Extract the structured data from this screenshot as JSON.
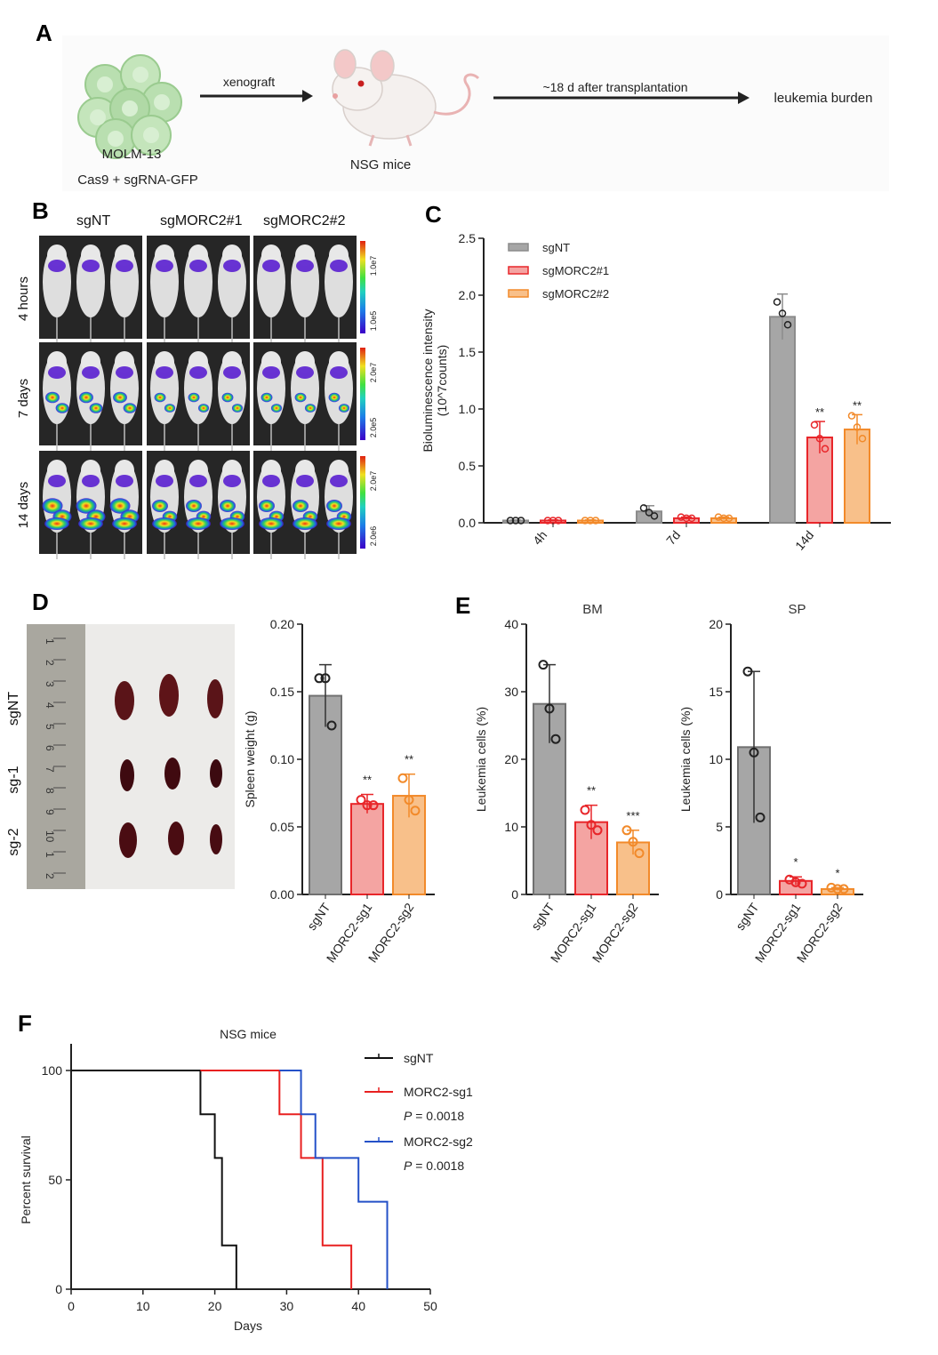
{
  "panels": {
    "a": "A",
    "b": "B",
    "c": "C",
    "d": "D",
    "e": "E",
    "f": "F"
  },
  "panel_a": {
    "cells_label": "MOLM-13",
    "cells_sublabel": "Cas9 + sgRNA-GFP",
    "step1": "xenograft",
    "mouse_label": "NSG mice",
    "step2": "~18 d after transplantation",
    "outcome": "leukemia burden"
  },
  "panel_b": {
    "columns": [
      "sgNT",
      "sgMORC2#1",
      "sgMORC2#2"
    ],
    "rows": [
      {
        "label": "4 hours",
        "scale_max": "1.0e7",
        "scale_min": "1.0e5"
      },
      {
        "label": "7 days",
        "scale_max": "2.0e7",
        "scale_min": "2.0e5"
      },
      {
        "label": "14 days",
        "scale_max": "2.0e7",
        "scale_min": "2.0e6"
      }
    ]
  },
  "panel_d_photo": {
    "row_labels": [
      "sgNT",
      "sg-1",
      "sg-2"
    ],
    "ruler_ticks": [
      "1",
      "2",
      "3",
      "4",
      "5",
      "6",
      "7",
      "8",
      "9",
      "10",
      "1",
      "2"
    ]
  },
  "chart_data": [
    {
      "id": "C",
      "type": "bar",
      "ylabel": "Bioluminescence intensity\n(10^7counts)",
      "ylim": [
        0,
        2.5
      ],
      "yticks": [
        "0.0",
        "0.5",
        "1.0",
        "1.5",
        "2.0",
        "2.5"
      ],
      "categories": [
        "4h",
        "7d",
        "14d"
      ],
      "legend": "top-left",
      "series": [
        {
          "name": "sgNT",
          "color": "#8c8c8c",
          "fill": "#a6a6a6",
          "values": [
            0.02,
            0.1,
            1.81
          ],
          "errors": [
            0.005,
            0.05,
            0.2
          ],
          "points": [
            [
              0.02,
              0.02,
              0.02
            ],
            [
              0.13,
              0.09,
              0.06
            ],
            [
              1.94,
              1.84,
              1.74
            ]
          ],
          "sig": [
            "",
            "",
            ""
          ]
        },
        {
          "name": "sgMORC2#1",
          "color": "#e8262a",
          "fill": "#f4a4a2",
          "values": [
            0.02,
            0.04,
            0.75
          ],
          "errors": [
            0.005,
            0.01,
            0.14
          ],
          "points": [
            [
              0.02,
              0.02,
              0.02
            ],
            [
              0.05,
              0.04,
              0.04
            ],
            [
              0.86,
              0.74,
              0.65
            ]
          ],
          "sig": [
            "",
            "",
            "**"
          ]
        },
        {
          "name": "sgMORC2#2",
          "color": "#f28a2a",
          "fill": "#f8c08a",
          "values": [
            0.02,
            0.04,
            0.82
          ],
          "errors": [
            0.005,
            0.01,
            0.13
          ],
          "points": [
            [
              0.02,
              0.02,
              0.02
            ],
            [
              0.05,
              0.04,
              0.04
            ],
            [
              0.94,
              0.84,
              0.74
            ]
          ],
          "sig": [
            "",
            "",
            "**"
          ]
        }
      ]
    },
    {
      "id": "D",
      "type": "bar",
      "ylabel": "Spleen weight (g)",
      "ylim": [
        0,
        0.2
      ],
      "yticks": [
        "0.00",
        "0.05",
        "0.10",
        "0.15",
        "0.20"
      ],
      "categories": [
        "sgNT",
        "MORC2-sg1",
        "MORC2-sg2"
      ],
      "values": [
        0.147,
        0.067,
        0.073
      ],
      "errors": [
        0.023,
        0.007,
        0.016
      ],
      "points": [
        [
          0.16,
          0.16,
          0.125
        ],
        [
          0.07,
          0.066,
          0.066
        ],
        [
          0.086,
          0.07,
          0.062
        ]
      ],
      "sig": [
        "",
        "**",
        "**"
      ]
    },
    {
      "id": "E-BM",
      "type": "bar",
      "title": "BM",
      "ylabel": "Leukemia cells (%)",
      "ylim": [
        0,
        40
      ],
      "yticks": [
        "0",
        "10",
        "20",
        "30",
        "40"
      ],
      "categories": [
        "sgNT",
        "MORC2-sg1",
        "MORC2-sg2"
      ],
      "values": [
        28.2,
        10.7,
        7.7
      ],
      "errors": [
        5.8,
        2.5,
        1.8
      ],
      "points": [
        [
          34,
          27.5,
          23
        ],
        [
          12.5,
          10.3,
          9.5
        ],
        [
          9.5,
          7.8,
          6.1
        ]
      ],
      "sig": [
        "",
        "**",
        "***"
      ]
    },
    {
      "id": "E-SP",
      "type": "bar",
      "title": "SP",
      "ylabel": "Leukemia cells (%)",
      "ylim": [
        0,
        20
      ],
      "yticks": [
        "0",
        "5",
        "10",
        "15",
        "20"
      ],
      "categories": [
        "sgNT",
        "MORC2-sg1",
        "MORC2-sg2"
      ],
      "values": [
        10.9,
        1.0,
        0.4
      ],
      "errors": [
        5.6,
        0.3,
        0.1
      ],
      "points": [
        [
          16.5,
          10.5,
          5.7
        ],
        [
          1.1,
          0.9,
          0.8
        ],
        [
          0.5,
          0.4,
          0.4
        ]
      ],
      "sig": [
        "",
        "*",
        "*"
      ]
    },
    {
      "id": "F",
      "type": "line",
      "title": "NSG mice",
      "xlabel": "Days",
      "ylabel": "Percent survival",
      "xlim": [
        0,
        50
      ],
      "ylim": [
        0,
        100
      ],
      "xticks": [
        "0",
        "10",
        "20",
        "30",
        "40",
        "50"
      ],
      "yticks": [
        "0",
        "50",
        "100"
      ],
      "legend": "top-right",
      "series": [
        {
          "name": "sgNT",
          "color": "#111111",
          "p": "",
          "x": [
            0,
            18,
            18,
            20,
            20,
            21,
            21,
            23,
            23
          ],
          "y": [
            100,
            100,
            80,
            80,
            60,
            60,
            20,
            20,
            0
          ]
        },
        {
          "name": "MORC2-sg1",
          "color": "#e82020",
          "p": "= 0.0018",
          "x": [
            18,
            29,
            29,
            32,
            32,
            35,
            35,
            39,
            39
          ],
          "y": [
            100,
            100,
            80,
            80,
            60,
            60,
            20,
            20,
            0
          ]
        },
        {
          "name": "MORC2-sg2",
          "color": "#2451c8",
          "p": "= 0.0018",
          "x": [
            29,
            32,
            32,
            34,
            34,
            40,
            40,
            44,
            44
          ],
          "y": [
            100,
            100,
            80,
            80,
            60,
            60,
            40,
            40,
            0
          ]
        }
      ]
    }
  ]
}
